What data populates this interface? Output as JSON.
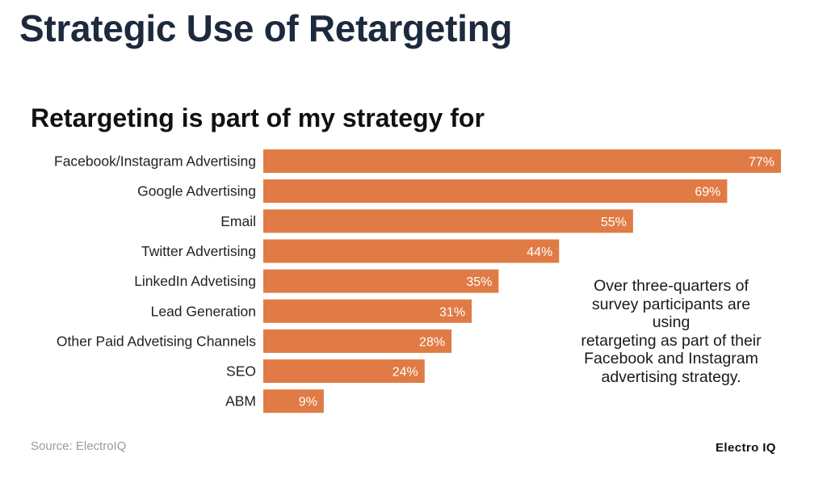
{
  "header": {
    "title": "Strategic Use of Retargeting"
  },
  "chart_data": {
    "type": "bar",
    "orientation": "horizontal",
    "title": "Retargeting is part of my strategy for",
    "categories": [
      "Facebook/Instagram Advertising",
      "Google Advertising",
      "Email",
      "Twitter Advertising",
      "LinkedIn Advetising",
      "Lead Generation",
      "Other Paid Advetising Channels",
      "SEO",
      "ABM"
    ],
    "values": [
      77,
      69,
      55,
      44,
      35,
      31,
      28,
      24,
      9
    ],
    "value_labels": [
      "77%",
      "69%",
      "55%",
      "44%",
      "35%",
      "31%",
      "28%",
      "24%",
      "9%"
    ],
    "unit": "%",
    "bar_color": "#e07b45",
    "xlim": [
      0,
      77
    ],
    "grid": false
  },
  "annotation": {
    "lines": [
      "Over three-quarters of",
      "survey participants are",
      "using",
      "retargeting as part of their",
      "Facebook and Instagram",
      "advertising strategy."
    ]
  },
  "footer": {
    "source": "Source: ElectroIQ",
    "brand": "Electro IQ"
  }
}
